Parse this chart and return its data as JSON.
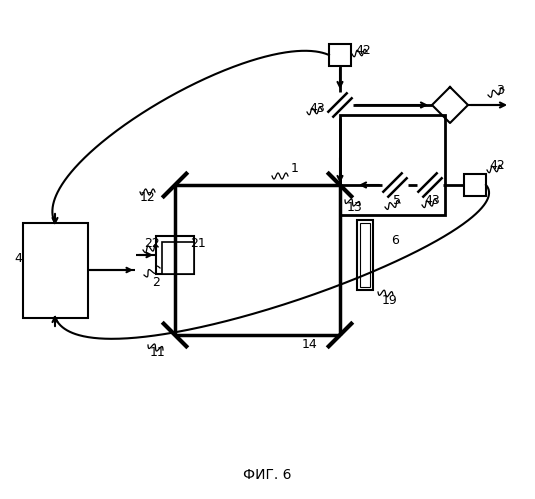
{
  "title": "ФИГ. 6",
  "bg_color": "#ffffff",
  "fig_width": 5.35,
  "fig_height": 4.99,
  "dpi": 100
}
